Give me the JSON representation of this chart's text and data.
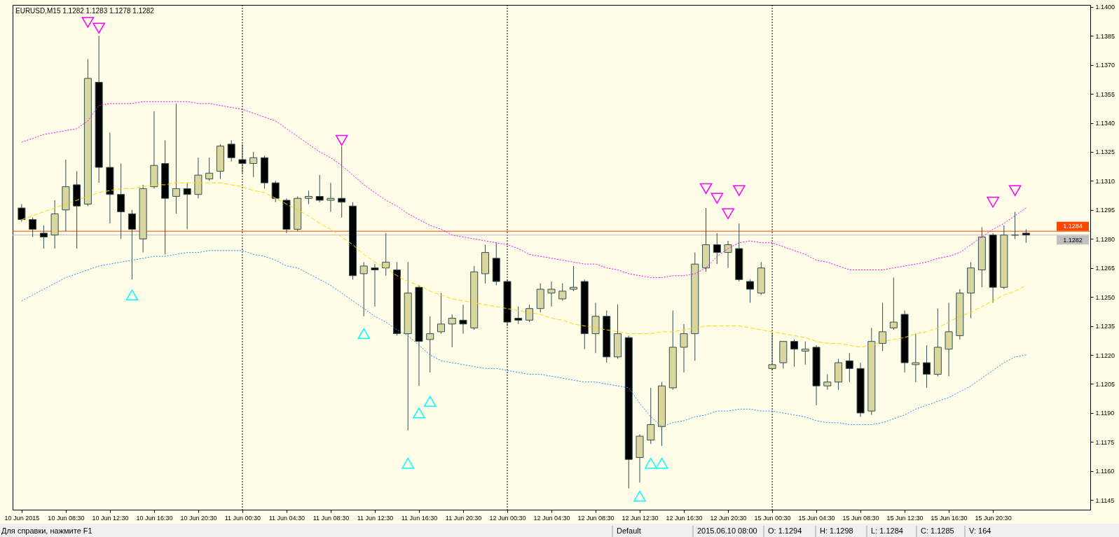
{
  "chart_data": {
    "type": "candlestick",
    "title": "EURUSD,M15 1.1282 1.1283 1.1278 1.1282",
    "categories": [
      "10 Jun 2015",
      null,
      null,
      null,
      "10 Jun 08:30",
      null,
      null,
      null,
      "10 Jun 12:30",
      null,
      null,
      null,
      "10 Jun 16:30",
      null,
      null,
      null,
      "10 Jun 20:30",
      null,
      null,
      null,
      "11 Jun 00:30",
      null,
      null,
      null,
      "11 Jun 04:30",
      null,
      null,
      null,
      "11 Jun 08:30",
      null,
      null,
      null,
      "11 Jun 12:30",
      null,
      null,
      null,
      "11 Jun 16:30",
      null,
      null,
      null,
      "11 Jun 20:30",
      null,
      null,
      null,
      "12 Jun 00:30",
      null,
      null,
      null,
      "12 Jun 04:30",
      null,
      null,
      null,
      "12 Jun 08:30",
      null,
      null,
      null,
      "12 Jun 12:30",
      null,
      null,
      null,
      "12 Jun 16:30",
      null,
      null,
      null,
      "12 Jun 20:30",
      null,
      null,
      null,
      "15 Jun 00:30",
      null,
      null,
      null,
      "15 Jun 04:30",
      null,
      null,
      null,
      "15 Jun 08:30",
      null,
      null,
      null,
      "15 Jun 12:30",
      null,
      null,
      null,
      "15 Jun 16:30",
      null,
      null,
      null,
      "15 Jun 20:30",
      null,
      null,
      null,
      null,
      null,
      null,
      null,
      null
    ],
    "ohlc": [
      [
        1.1296,
        1.1298,
        1.1289,
        1.129
      ],
      [
        1.129,
        1.1291,
        1.1281,
        1.1285
      ],
      [
        1.1283,
        1.1287,
        1.1275,
        1.1281
      ],
      [
        1.1282,
        1.13,
        1.1275,
        1.1293
      ],
      [
        1.1295,
        1.1321,
        1.1284,
        1.1307
      ],
      [
        1.1308,
        1.1315,
        1.1275,
        1.1297
      ],
      [
        1.1298,
        1.1373,
        1.1297,
        1.1363
      ],
      [
        1.1361,
        1.1385,
        1.1309,
        1.1317
      ],
      [
        1.1317,
        1.1335,
        1.1288,
        1.1303
      ],
      [
        1.1303,
        1.1319,
        1.128,
        1.1294
      ],
      [
        1.1293,
        1.1295,
        1.1259,
        1.1285
      ],
      [
        1.128,
        1.1308,
        1.1273,
        1.1306
      ],
      [
        1.1307,
        1.1346,
        1.1306,
        1.1318
      ],
      [
        1.1319,
        1.1331,
        1.1272,
        1.1301
      ],
      [
        1.1302,
        1.135,
        1.1293,
        1.1306
      ],
      [
        1.1306,
        1.1309,
        1.1285,
        1.1303
      ],
      [
        1.1303,
        1.1322,
        1.1301,
        1.1313
      ],
      [
        1.1311,
        1.1322,
        1.131,
        1.1314
      ],
      [
        1.1315,
        1.1329,
        1.1311,
        1.1328
      ],
      [
        1.1329,
        1.1331,
        1.132,
        1.1322
      ],
      [
        1.1321,
        1.1329,
        1.1314,
        1.1319
      ],
      [
        1.1319,
        1.1325,
        1.1312,
        1.1322
      ],
      [
        1.1322,
        1.1323,
        1.1306,
        1.1309
      ],
      [
        1.1309,
        1.131,
        1.1299,
        1.1301
      ],
      [
        1.13,
        1.1301,
        1.1283,
        1.1285
      ],
      [
        1.1285,
        1.1302,
        1.1284,
        1.1301
      ],
      [
        1.1301,
        1.1305,
        1.1298,
        1.1302
      ],
      [
        1.1302,
        1.1313,
        1.1299,
        1.13
      ],
      [
        1.13,
        1.1309,
        1.1294,
        1.1301
      ],
      [
        1.1301,
        1.1328,
        1.1291,
        1.1299
      ],
      [
        1.1297,
        1.1299,
        1.1259,
        1.1261
      ],
      [
        1.1262,
        1.1268,
        1.124,
        1.1266
      ],
      [
        1.1265,
        1.1267,
        1.1245,
        1.1264
      ],
      [
        1.1265,
        1.1283,
        1.1261,
        1.1268
      ],
      [
        1.1264,
        1.1268,
        1.123,
        1.1231
      ],
      [
        1.1231,
        1.1268,
        1.1181,
        1.1252
      ],
      [
        1.1255,
        1.1256,
        1.1204,
        1.1227
      ],
      [
        1.1228,
        1.124,
        1.1211,
        1.1231
      ],
      [
        1.1232,
        1.1252,
        1.1231,
        1.1236
      ],
      [
        1.1236,
        1.1241,
        1.1224,
        1.1239
      ],
      [
        1.1238,
        1.1246,
        1.1231,
        1.1236
      ],
      [
        1.1234,
        1.1266,
        1.1233,
        1.1263
      ],
      [
        1.1262,
        1.1277,
        1.1257,
        1.1273
      ],
      [
        1.127,
        1.1278,
        1.1256,
        1.1258
      ],
      [
        1.1258,
        1.1259,
        1.1235,
        1.1237
      ],
      [
        1.1239,
        1.1245,
        1.1236,
        1.1238
      ],
      [
        1.1238,
        1.1246,
        1.1237,
        1.1244
      ],
      [
        1.1244,
        1.1257,
        1.1242,
        1.1254
      ],
      [
        1.1252,
        1.1258,
        1.1245,
        1.1254
      ],
      [
        1.1249,
        1.1257,
        1.1248,
        1.1253
      ],
      [
        1.1254,
        1.1266,
        1.1253,
        1.1255
      ],
      [
        1.1258,
        1.1259,
        1.1223,
        1.1231
      ],
      [
        1.1231,
        1.1247,
        1.1221,
        1.124
      ],
      [
        1.124,
        1.1243,
        1.1216,
        1.1219
      ],
      [
        1.1219,
        1.1246,
        1.1218,
        1.1231
      ],
      [
        1.1229,
        1.123,
        1.1151,
        1.1166
      ],
      [
        1.1167,
        1.1179,
        1.1154,
        1.1178
      ],
      [
        1.1176,
        1.1203,
        1.1174,
        1.1184
      ],
      [
        1.1183,
        1.1206,
        1.1173,
        1.1204
      ],
      [
        1.1203,
        1.1243,
        1.1202,
        1.1224
      ],
      [
        1.1224,
        1.1236,
        1.1211,
        1.1231
      ],
      [
        1.1231,
        1.1273,
        1.1217,
        1.1267
      ],
      [
        1.1265,
        1.1296,
        1.1263,
        1.1277
      ],
      [
        1.1277,
        1.1283,
        1.1267,
        1.1273
      ],
      [
        1.1273,
        1.1279,
        1.1265,
        1.1277
      ],
      [
        1.1275,
        1.1288,
        1.1258,
        1.1259
      ],
      [
        1.1258,
        1.1259,
        1.1247,
        1.1254
      ],
      [
        1.1252,
        1.1268,
        1.1251,
        1.1265
      ],
      [
        1.1213,
        1.1231,
        1.1212,
        1.1215
      ],
      [
        1.1216,
        1.1227,
        1.1213,
        1.1227
      ],
      [
        1.1227,
        1.1228,
        1.1214,
        1.1223
      ],
      [
        1.1222,
        1.1227,
        1.1215,
        1.1223
      ],
      [
        1.1224,
        1.1225,
        1.1194,
        1.1204
      ],
      [
        1.1204,
        1.121,
        1.1202,
        1.1206
      ],
      [
        1.1206,
        1.1218,
        1.1202,
        1.1216
      ],
      [
        1.1217,
        1.1221,
        1.1206,
        1.1213
      ],
      [
        1.1213,
        1.1216,
        1.1188,
        1.119
      ],
      [
        1.1191,
        1.1234,
        1.1189,
        1.1227
      ],
      [
        1.1226,
        1.1247,
        1.1222,
        1.1232
      ],
      [
        1.1234,
        1.126,
        1.1233,
        1.1237
      ],
      [
        1.1241,
        1.1243,
        1.1211,
        1.1216
      ],
      [
        1.1215,
        1.1231,
        1.1206,
        1.1216
      ],
      [
        1.1216,
        1.1225,
        1.1203,
        1.121
      ],
      [
        1.121,
        1.1244,
        1.1209,
        1.1224
      ],
      [
        1.1223,
        1.1247,
        1.1209,
        1.1232
      ],
      [
        1.123,
        1.1254,
        1.1228,
        1.1252
      ],
      [
        1.1252,
        1.1268,
        1.1239,
        1.1265
      ],
      [
        1.1264,
        1.1286,
        1.1255,
        1.1281
      ],
      [
        1.1282,
        1.1283,
        1.1247,
        1.1255
      ],
      [
        1.1255,
        1.1287,
        1.1254,
        1.1282
      ],
      [
        1.1282,
        1.1294,
        1.128,
        1.1282
      ],
      [
        1.1283,
        1.1285,
        1.1278,
        1.1282
      ],
      null,
      null,
      null,
      null,
      null
    ],
    "color": "#2f4f4f",
    "colors": [
      "#000000",
      "#000000",
      "#000000",
      "#d9d6a0",
      "#d9d6a0",
      "#000000",
      "#d9d6a0",
      "#000000",
      "#000000",
      "#000000",
      "#000000",
      "#d9d6a0",
      "#d9d6a0",
      "#000000",
      "#d9d6a0",
      "#000000",
      "#d9d6a0",
      "#d9d6a0",
      "#d9d6a0",
      "#000000",
      "#000000",
      "#d9d6a0",
      "#000000",
      "#000000",
      "#000000",
      "#d9d6a0",
      "#d9d6a0",
      "#000000",
      "#d9d6a0",
      "#000000",
      "#000000",
      "#d9d6a0",
      "#000000",
      "#d9d6a0",
      "#000000",
      "#d9d6a0",
      "#000000",
      "#d9d6a0",
      "#d9d6a0",
      "#d9d6a0",
      "#000000",
      "#d9d6a0",
      "#d9d6a0",
      "#000000",
      "#000000",
      "#000000",
      "#d9d6a0",
      "#d9d6a0",
      "#d9d6a0",
      "#d9d6a0",
      "#d9d6a0",
      "#000000",
      "#d9d6a0",
      "#000000",
      "#d9d6a0",
      "#000000",
      "#d9d6a0",
      "#d9d6a0",
      "#d9d6a0",
      "#d9d6a0",
      "#d9d6a0",
      "#d9d6a0",
      "#d9d6a0",
      "#000000",
      "#d9d6a0",
      "#000000",
      "#000000",
      "#d9d6a0",
      "#d9d6a0",
      "#d9d6a0",
      "#000000",
      "#d9d6a0",
      "#000000",
      "#d9d6a0",
      "#d9d6a0",
      "#000000",
      "#000000",
      "#d9d6a0",
      "#d9d6a0",
      "#d9d6a0",
      "#000000",
      "#d9d6a0",
      "#000000",
      "#d9d6a0",
      "#d9d6a0",
      "#d9d6a0",
      "#d9d6a0",
      "#d9d6a0",
      "#000000",
      "#d9d6a0",
      "#2f4f4f",
      "#000000",
      null,
      null,
      null,
      null,
      null
    ],
    "series": [
      {
        "type": "line",
        "color": "#ff00ff",
        "line_style": "dotted",
        "values": [
          1.133,
          1.1332,
          1.1334,
          1.1335,
          1.1336,
          1.1337,
          1.1341,
          1.1349,
          1.135,
          1.135,
          1.135,
          1.1351,
          1.1351,
          1.1351,
          1.1351,
          1.1351,
          1.135,
          1.135,
          1.1349,
          1.1348,
          1.1347,
          1.1345,
          1.1343,
          1.1341,
          1.1337,
          1.1333,
          1.1329,
          1.1325,
          1.1322,
          1.1318,
          1.1313,
          1.1308,
          1.1304,
          1.13,
          1.1297,
          1.1293,
          1.129,
          1.1287,
          1.1285,
          1.1282,
          1.1281,
          1.128,
          1.1279,
          1.1278,
          1.1277,
          1.1275,
          1.1272,
          1.1271,
          1.127,
          1.1269,
          1.1268,
          1.1267,
          1.1267,
          1.1265,
          1.1264,
          1.1262,
          1.1261,
          1.126,
          1.126,
          1.1261,
          1.1261,
          1.1262,
          1.1265,
          1.1271,
          1.1275,
          1.1278,
          1.1279,
          1.1278,
          1.1278,
          1.1276,
          1.1274,
          1.1272,
          1.1269,
          1.1268,
          1.1266,
          1.1264,
          1.1264,
          1.1264,
          1.1264,
          1.1265,
          1.1266,
          1.1267,
          1.1268,
          1.127,
          1.1271,
          1.1273,
          1.1277,
          1.1281,
          1.1285,
          1.1288,
          1.1292,
          1.1296,
          null,
          null,
          null,
          null,
          null
        ]
      },
      {
        "type": "line",
        "color": "#ffd700",
        "line_style": "dashed",
        "values": [
          1.129,
          1.1292,
          1.1294,
          1.1296,
          1.1298,
          1.13,
          1.1302,
          1.1304,
          1.1305,
          1.1306,
          1.1306,
          1.1307,
          1.1308,
          1.1308,
          1.1309,
          1.1309,
          1.1309,
          1.1309,
          1.1309,
          1.1308,
          1.1307,
          1.1305,
          1.1304,
          1.1301,
          1.1298,
          1.1295,
          1.1292,
          1.1288,
          1.1285,
          1.1281,
          1.1277,
          1.1272,
          1.1268,
          1.1265,
          1.1261,
          1.1258,
          1.1256,
          1.1253,
          1.1251,
          1.1249,
          1.1248,
          1.1247,
          1.1246,
          1.1245,
          1.1244,
          1.1243,
          1.1242,
          1.1241,
          1.1239,
          1.1238,
          1.1236,
          1.1235,
          1.1234,
          1.1233,
          1.1232,
          1.1231,
          1.1231,
          1.1231,
          1.1232,
          1.1232,
          1.1233,
          1.1234,
          1.1235,
          1.1235,
          1.1235,
          1.1235,
          1.1234,
          1.1233,
          1.1232,
          1.1231,
          1.123,
          1.1229,
          1.1227,
          1.1226,
          1.1226,
          1.1225,
          1.1224,
          1.1225,
          1.1227,
          1.1228,
          1.1229,
          1.1231,
          1.1232,
          1.1234,
          1.1237,
          1.124,
          1.1242,
          1.1245,
          1.1248,
          1.1251,
          1.1253,
          1.1256,
          null,
          null,
          null,
          null,
          null
        ]
      },
      {
        "type": "line",
        "color": "#1e90ff",
        "line_style": "dotted",
        "values": [
          1.1248,
          1.1251,
          1.1254,
          1.1257,
          1.126,
          1.1262,
          1.1264,
          1.1266,
          1.1267,
          1.1268,
          1.1269,
          1.127,
          1.1271,
          1.1271,
          1.1272,
          1.1273,
          1.1273,
          1.1274,
          1.1274,
          1.1274,
          1.1274,
          1.1272,
          1.1271,
          1.1269,
          1.1266,
          1.1265,
          1.1262,
          1.1259,
          1.1256,
          1.1252,
          1.1248,
          1.1244,
          1.124,
          1.1237,
          1.1233,
          1.123,
          1.1225,
          1.122,
          1.1217,
          1.1216,
          1.1215,
          1.1214,
          1.1213,
          1.1213,
          1.1212,
          1.1211,
          1.121,
          1.121,
          1.1209,
          1.1208,
          1.1207,
          1.1206,
          1.1206,
          1.1205,
          1.1204,
          1.1203,
          1.1195,
          1.1188,
          1.1183,
          1.1185,
          1.1186,
          1.1188,
          1.1189,
          1.1191,
          1.1191,
          1.1192,
          1.1192,
          1.1191,
          1.1191,
          1.119,
          1.1189,
          1.1188,
          1.1186,
          1.1185,
          1.1185,
          1.1184,
          1.1184,
          1.1184,
          1.1185,
          1.1187,
          1.1189,
          1.1192,
          1.1194,
          1.1196,
          1.1198,
          1.1201,
          1.1204,
          1.1208,
          1.1212,
          1.1216,
          1.1219,
          1.122,
          null,
          null,
          null,
          null,
          null
        ]
      },
      {
        "type": "scatter",
        "color": "#ff00ff",
        "marker": "triangle",
        "values": [
          null,
          null,
          null,
          null,
          null,
          null,
          1.1392,
          1.1389,
          null,
          null,
          null,
          null,
          null,
          null,
          null,
          null,
          null,
          null,
          null,
          null,
          null,
          null,
          null,
          null,
          null,
          null,
          null,
          null,
          null,
          1.1331,
          null,
          null,
          null,
          null,
          null,
          null,
          null,
          null,
          null,
          null,
          null,
          null,
          null,
          null,
          null,
          null,
          null,
          null,
          null,
          null,
          null,
          null,
          null,
          null,
          null,
          null,
          null,
          null,
          null,
          null,
          null,
          null,
          1.1306,
          1.1301,
          1.1293,
          1.1305,
          null,
          null,
          null,
          null,
          null,
          null,
          null,
          null,
          null,
          null,
          null,
          null,
          null,
          null,
          null,
          null,
          null,
          null,
          null,
          null,
          null,
          null,
          1.1299,
          null,
          1.1305,
          null,
          null,
          null,
          null,
          null,
          null
        ]
      },
      {
        "type": "scatter",
        "color": "#00ffff",
        "marker": "triangle",
        "values": [
          null,
          null,
          null,
          null,
          null,
          null,
          null,
          null,
          null,
          null,
          1.1251,
          null,
          null,
          null,
          null,
          null,
          null,
          null,
          null,
          null,
          null,
          null,
          null,
          null,
          null,
          null,
          null,
          null,
          null,
          null,
          null,
          1.1231,
          null,
          null,
          null,
          1.1164,
          1.119,
          1.1196,
          null,
          null,
          null,
          null,
          null,
          null,
          null,
          null,
          null,
          null,
          null,
          null,
          null,
          null,
          null,
          null,
          null,
          null,
          1.1147,
          1.1164,
          1.1164,
          null,
          null,
          null,
          null,
          null,
          null,
          null,
          null,
          null,
          null,
          null,
          null,
          null,
          null,
          null,
          null,
          null,
          null,
          null,
          null,
          null,
          null,
          null,
          null,
          null,
          null,
          null,
          null,
          null,
          null,
          null,
          null,
          null,
          null,
          null,
          null,
          null,
          null
        ]
      }
    ],
    "ylim": [
      1.114,
      1.1401
    ],
    "yticks": [
      1.1145,
      {
        "value": 1.116,
        "label": "1.1160"
      },
      1.1175,
      {
        "value": 1.119,
        "label": "1.1190"
      },
      1.1205,
      {
        "value": 1.122,
        "label": "1.1220"
      },
      1.1235,
      {
        "value": 1.125,
        "label": "1.1250"
      },
      1.1265,
      {
        "value": 1.128,
        "label": "1.1280"
      },
      1.1295,
      {
        "value": 1.131,
        "label": "1.1310"
      },
      1.1325,
      {
        "value": 1.134,
        "label": "1.1340"
      },
      1.1355,
      {
        "value": 1.137,
        "label": "1.1370"
      },
      1.1385,
      {
        "value": 1.14,
        "label": "1.1400"
      }
    ],
    "ref_lines": [
      {
        "axis": "x",
        "value": "11 Jun 00:30",
        "color": "#000000",
        "line_style": "dotted"
      },
      {
        "axis": "x",
        "value": "12 Jun 00:30",
        "color": "#000000",
        "line_style": "dotted"
      },
      {
        "axis": "x",
        "value": "15 Jun 00:30",
        "color": "#000000",
        "line_style": "dotted"
      },
      {
        "axis": "y",
        "value": 1.1284,
        "label": "1.1284",
        "color": "#ff4500"
      },
      {
        "axis": "y",
        "value": 1.1282,
        "label": "1.1282",
        "color": "#c0c0c0"
      }
    ],
    "annotations": [
      "Для справки, нажмите F1",
      "Default",
      "2015.06.10 08:00",
      "O: 1.1294",
      "H: 1.1298",
      "L: 1.1284",
      "C: 1.1285",
      "V: 164"
    ]
  }
}
